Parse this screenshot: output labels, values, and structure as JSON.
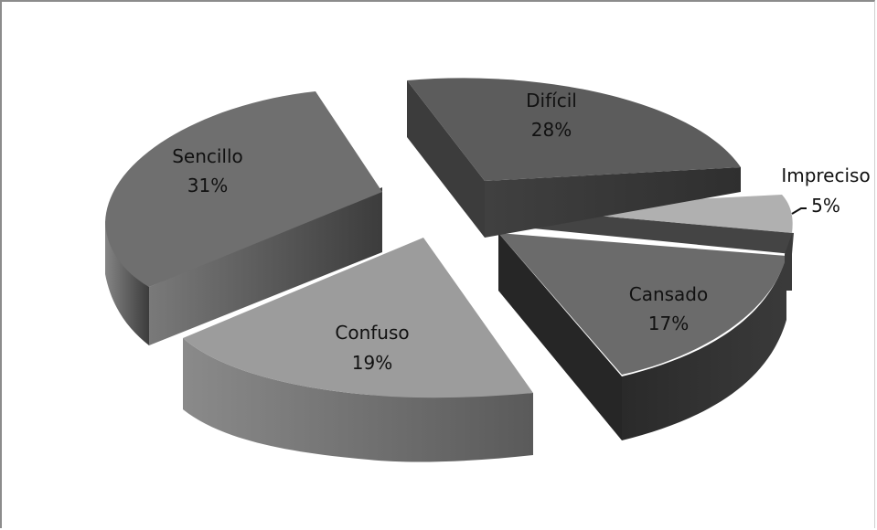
{
  "chart_data": {
    "type": "pie",
    "style": "3d-exploded",
    "title": "",
    "slices": [
      {
        "name": "Sencillo",
        "value": 31,
        "label": "31%"
      },
      {
        "name": "Difícil",
        "value": 28,
        "label": "28%"
      },
      {
        "name": "Impreciso",
        "value": 5,
        "label": "5%"
      },
      {
        "name": "Cansado",
        "value": 17,
        "label": "17%"
      },
      {
        "name": "Confuso",
        "value": 19,
        "label": "19%"
      }
    ],
    "legend": "none",
    "colors": {
      "Sencillo": "#6f6f6f",
      "Difícil": "#5c5c5c",
      "Impreciso": "#b0b0b0",
      "Cansado": "#6b6b6b",
      "Confuso": "#9c9c9c"
    }
  }
}
